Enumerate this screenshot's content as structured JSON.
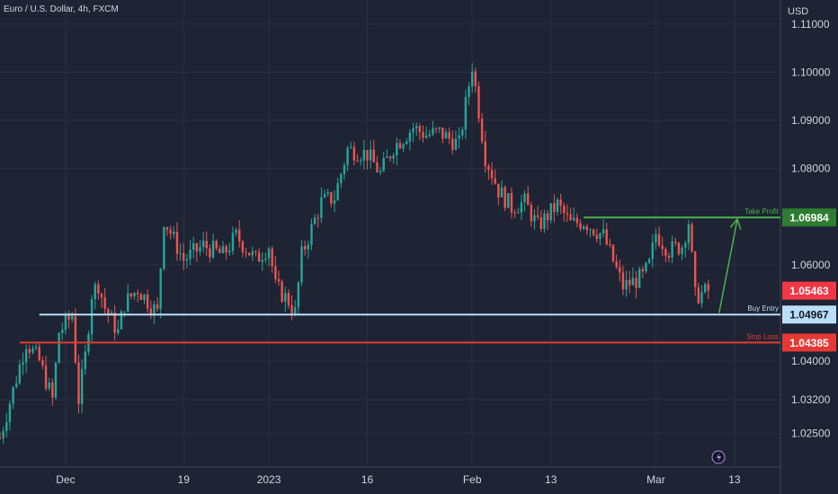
{
  "header": {
    "symbol_title": "Euro / U.S. Dollar, 4h, FXCM",
    "price_unit": "USD"
  },
  "colors": {
    "background": "#1e2433",
    "text": "#d1d4dc",
    "grid": "#2a3142",
    "candle_up": "#26a69a",
    "candle_down": "#ef5350",
    "take_profit": "#4caf50",
    "buy_entry": "#bbdefb",
    "stop_loss": "#e53935",
    "current_price": "#f23645",
    "arrow": "#4caf50"
  },
  "chart_data": {
    "type": "candlestick",
    "symbol": "EUR/USD",
    "timeframe": "4h",
    "y_axis": {
      "ticks": [
        1.11,
        1.1,
        1.09,
        1.08,
        1.06,
        1.04,
        1.032,
        1.025
      ],
      "tick_labels": [
        "1.11000",
        "1.10000",
        "1.09000",
        "1.08000",
        "1.06000",
        "1.04000",
        "1.03200",
        "1.02500"
      ],
      "range": [
        1.018,
        1.115
      ]
    },
    "x_axis": {
      "tick_labels": [
        "Dec",
        "19",
        "2023",
        "16",
        "Feb",
        "13",
        "Mar",
        "13"
      ],
      "tick_dates": [
        "2022-12-01",
        "2022-12-19",
        "2023-01-01",
        "2023-01-16",
        "2023-02-01",
        "2023-02-13",
        "2023-03-01",
        "2023-03-13"
      ],
      "range": [
        "2022-11-21",
        "2023-03-20"
      ]
    },
    "close_path": [
      [
        "2022-11-21",
        1.024
      ],
      [
        "2022-11-23",
        1.034
      ],
      [
        "2022-11-25",
        1.044
      ],
      [
        "2022-11-27",
        1.04
      ],
      [
        "2022-11-29",
        1.032
      ],
      [
        "2022-11-30",
        1.046
      ],
      [
        "2022-12-02",
        1.0495
      ],
      [
        "2022-12-03",
        1.032
      ],
      [
        "2022-12-04",
        1.041
      ],
      [
        "2022-12-05",
        1.054
      ],
      [
        "2022-12-06",
        1.056
      ],
      [
        "2022-12-07",
        1.051
      ],
      [
        "2022-12-09",
        1.046
      ],
      [
        "2022-12-10",
        1.052
      ],
      [
        "2022-12-12",
        1.055
      ],
      [
        "2022-12-15",
        1.05
      ],
      [
        "2022-12-16",
        1.0695
      ],
      [
        "2022-12-19",
        1.061
      ],
      [
        "2022-12-22",
        1.064
      ],
      [
        "2022-12-25",
        1.062
      ],
      [
        "2022-12-27",
        1.066
      ],
      [
        "2022-12-30",
        1.061
      ],
      [
        "2023-01-01",
        1.064
      ],
      [
        "2023-01-02",
        1.0555
      ],
      [
        "2023-01-03",
        1.054
      ],
      [
        "2023-01-04",
        1.0525
      ],
      [
        "2023-01-05",
        1.05
      ],
      [
        "2023-01-06",
        1.062
      ],
      [
        "2023-01-09",
        1.073
      ],
      [
        "2023-01-11",
        1.074
      ],
      [
        "2023-01-13",
        1.084
      ],
      [
        "2023-01-16",
        1.083
      ],
      [
        "2023-01-18",
        1.079
      ],
      [
        "2023-01-20",
        1.0845
      ],
      [
        "2023-01-23",
        1.0885
      ],
      [
        "2023-01-25",
        1.087
      ],
      [
        "2023-01-27",
        1.0875
      ],
      [
        "2023-01-30",
        1.085
      ],
      [
        "2023-02-01",
        1.1015
      ],
      [
        "2023-02-02",
        1.092
      ],
      [
        "2023-02-03",
        1.0825
      ],
      [
        "2023-02-05",
        1.0755
      ],
      [
        "2023-02-07",
        1.072
      ],
      [
        "2023-02-09",
        1.073
      ],
      [
        "2023-02-11",
        1.068
      ],
      [
        "2023-02-14",
        1.0725
      ],
      [
        "2023-02-16",
        1.0685
      ],
      [
        "2023-02-18",
        1.069
      ],
      [
        "2023-02-21",
        1.066
      ],
      [
        "2023-02-24",
        1.0555
      ],
      [
        "2023-02-27",
        1.0575
      ],
      [
        "2023-02-28",
        1.06
      ],
      [
        "2023-03-01",
        1.0665
      ],
      [
        "2023-03-03",
        1.063
      ],
      [
        "2023-03-05",
        1.064
      ],
      [
        "2023-03-06",
        1.069
      ],
      [
        "2023-03-07",
        1.0535
      ],
      [
        "2023-03-09",
        1.0546
      ]
    ],
    "levels": [
      {
        "name": "Take Profit",
        "value": 1.06984,
        "label": "1.06984",
        "start": "2023-02-18"
      },
      {
        "name": "Buy Entry",
        "value": 1.04967,
        "label": "1.04967",
        "start": "2022-11-27"
      },
      {
        "name": "Stop Loss",
        "value": 1.04385,
        "label": "1.04385",
        "start": "2022-11-24"
      }
    ],
    "current_price": {
      "value": 1.05463,
      "label": "1.05463"
    },
    "arrow": {
      "from": [
        "2023-03-09",
        1.05
      ],
      "to": [
        "2023-03-10",
        1.0695
      ]
    }
  }
}
